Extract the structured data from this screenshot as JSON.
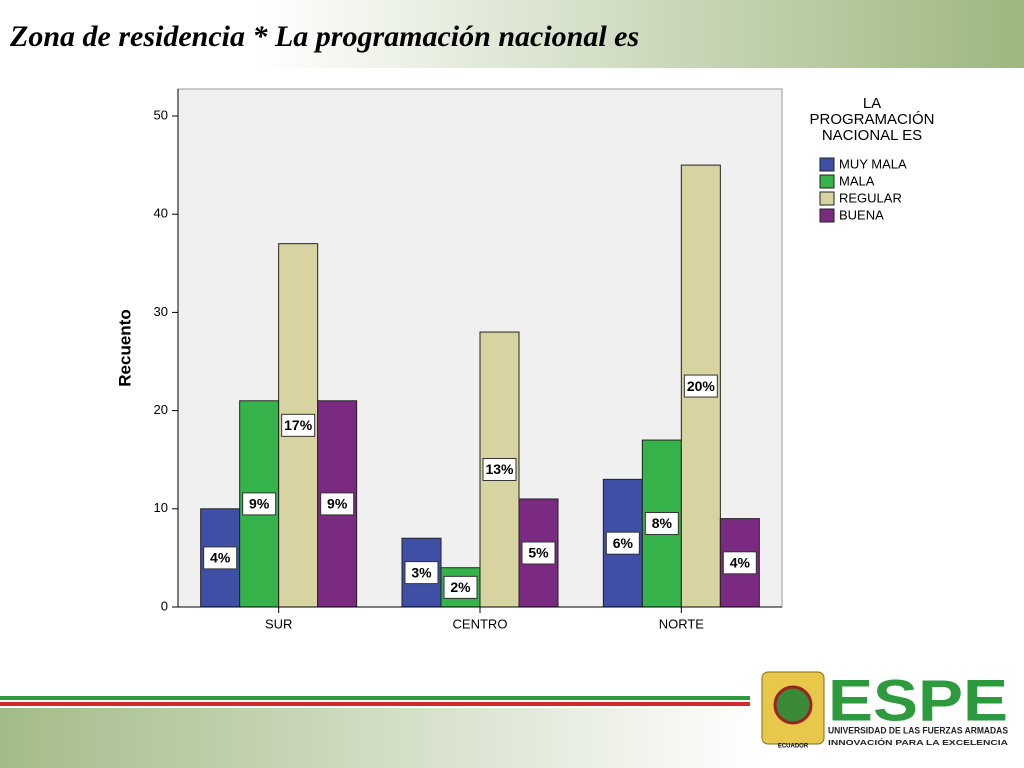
{
  "slide_title": "Zona de residencia * La programación nacional es",
  "chart_data": {
    "type": "bar",
    "categories": [
      "SUR",
      "CENTRO",
      "NORTE"
    ],
    "series": [
      {
        "name": "MUY MALA",
        "color": "#3f4fa6",
        "values": [
          10,
          7,
          13
        ],
        "value_labels": [
          "4%",
          "3%",
          "6%"
        ]
      },
      {
        "name": "MALA",
        "color": "#35b34a",
        "values": [
          21,
          4,
          17
        ],
        "value_labels": [
          "9%",
          "2%",
          "8%"
        ]
      },
      {
        "name": "REGULAR",
        "color": "#d7d4a2",
        "values": [
          37,
          28,
          45
        ],
        "value_labels": [
          "17%",
          "13%",
          "20%"
        ]
      },
      {
        "name": "BUENA",
        "color": "#7b2a82",
        "values": [
          21,
          11,
          9
        ],
        "value_labels": [
          "9%",
          "5%",
          "4%"
        ]
      }
    ],
    "ylabel": "Recuento",
    "legend_title": [
      "LA",
      "PROGRAMACIÓN",
      "NACIONAL ES"
    ],
    "ylim": [
      0,
      52.75
    ],
    "yticks": [
      0,
      10,
      20,
      30,
      40,
      50
    ],
    "legend": "right"
  },
  "logo": {
    "name": "ESPE",
    "line1": "UNIVERSIDAD DE LAS FUERZAS ARMADAS",
    "line2": "INNOVACIÓN PARA LA EXCELENCIA",
    "emblem": "ECUADOR"
  }
}
